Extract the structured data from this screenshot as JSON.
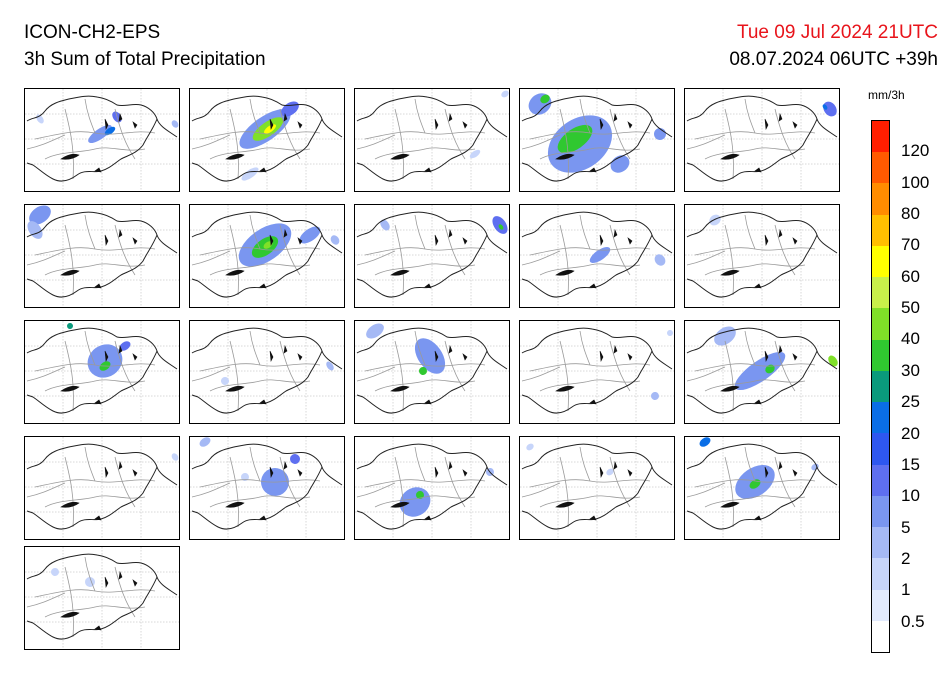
{
  "header": {
    "model": "ICON-CH2-EPS",
    "product": "3h Sum of Total Precipitation",
    "valid_time": "Tue 09 Jul 2024 21UTC",
    "run_info": "08.07.2024 06UTC +39h",
    "valid_time_color": "#e8141b"
  },
  "colorbar": {
    "unit": "mm/3h",
    "labels": [
      "120",
      "100",
      "80",
      "70",
      "60",
      "50",
      "40",
      "30",
      "25",
      "20",
      "15",
      "10",
      "5",
      "2",
      "1",
      "0.5"
    ],
    "colors_top_to_bottom": [
      "#ff1e00",
      "#ff5a00",
      "#ff8c00",
      "#ffbf00",
      "#ffff00",
      "#c8f04a",
      "#80e028",
      "#30c830",
      "#0a9a7c",
      "#0a6ee6",
      "#2e57f0",
      "#5e6ff0",
      "#7a96f0",
      "#a5b9f5",
      "#c7d5fa",
      "#e2eafd",
      "#ffffff"
    ]
  },
  "members": [
    {
      "precip": [
        [
          75,
          45,
          14,
          5,
          "#7a96f0"
        ],
        [
          85,
          42,
          6,
          3,
          "#0a6ee6"
        ],
        [
          92,
          28,
          4,
          6,
          "#5e6ff0"
        ],
        [
          15,
          30,
          3,
          5,
          "#c7d5fa"
        ],
        [
          150,
          35,
          3,
          4,
          "#a5b9f5"
        ]
      ]
    },
    {
      "precip": [
        [
          75,
          40,
          30,
          12,
          "#7a96f0"
        ],
        [
          78,
          40,
          18,
          7,
          "#80e028"
        ],
        [
          80,
          40,
          7,
          3,
          "#ffff00"
        ],
        [
          100,
          20,
          10,
          6,
          "#5e6ff0"
        ],
        [
          60,
          85,
          10,
          4,
          "#c7d5fa"
        ]
      ]
    },
    {
      "precip": [
        [
          120,
          65,
          6,
          3,
          "#c7d5fa"
        ],
        [
          150,
          5,
          4,
          3,
          "#c7d5fa"
        ]
      ]
    },
    {
      "precip": [
        [
          60,
          55,
          35,
          25,
          "#7a96f0"
        ],
        [
          55,
          50,
          20,
          10,
          "#30c830"
        ],
        [
          20,
          15,
          12,
          10,
          "#7a96f0"
        ],
        [
          25,
          10,
          5,
          4,
          "#30c830"
        ],
        [
          140,
          45,
          6,
          6,
          "#7a96f0"
        ],
        [
          100,
          75,
          10,
          8,
          "#7a96f0"
        ]
      ]
    },
    {
      "precip": [
        [
          145,
          20,
          6,
          8,
          "#5e6ff0"
        ],
        [
          140,
          18,
          2,
          3,
          "#0a6ee6"
        ]
      ]
    },
    {
      "precip": [
        [
          15,
          10,
          12,
          8,
          "#7a96f0"
        ],
        [
          10,
          25,
          6,
          10,
          "#a5b9f5"
        ]
      ]
    },
    {
      "precip": [
        [
          75,
          40,
          30,
          16,
          "#7a96f0"
        ],
        [
          75,
          42,
          15,
          8,
          "#30c830"
        ],
        [
          78,
          40,
          5,
          3,
          "#80e028"
        ],
        [
          120,
          30,
          12,
          6,
          "#7a96f0"
        ],
        [
          145,
          35,
          4,
          5,
          "#a5b9f5"
        ]
      ]
    },
    {
      "precip": [
        [
          145,
          20,
          6,
          10,
          "#5e6ff0"
        ],
        [
          146,
          22,
          2,
          3,
          "#30c830"
        ],
        [
          30,
          20,
          4,
          6,
          "#a5b9f5"
        ]
      ]
    },
    {
      "precip": [
        [
          80,
          50,
          12,
          5,
          "#7a96f0"
        ],
        [
          140,
          55,
          5,
          6,
          "#a5b9f5"
        ]
      ]
    },
    {
      "precip": [
        [
          30,
          15,
          6,
          5,
          "#c7d5fa"
        ]
      ]
    },
    {
      "precip": [
        [
          80,
          40,
          18,
          16,
          "#7a96f0"
        ],
        [
          80,
          45,
          6,
          4,
          "#30c830"
        ],
        [
          100,
          25,
          6,
          4,
          "#5e6ff0"
        ],
        [
          45,
          5,
          3,
          3,
          "#0a9a7c"
        ]
      ]
    },
    {
      "precip": [
        [
          140,
          45,
          3,
          5,
          "#a5b9f5"
        ],
        [
          35,
          60,
          4,
          4,
          "#c7d5fa"
        ]
      ]
    },
    {
      "precip": [
        [
          75,
          35,
          12,
          20,
          "#7a96f0"
        ],
        [
          68,
          50,
          4,
          4,
          "#30c830"
        ],
        [
          20,
          10,
          10,
          6,
          "#a5b9f5"
        ]
      ]
    },
    {
      "precip": [
        [
          135,
          75,
          4,
          4,
          "#a5b9f5"
        ],
        [
          150,
          12,
          3,
          3,
          "#c7d5fa"
        ]
      ]
    },
    {
      "precip": [
        [
          75,
          50,
          30,
          10,
          "#7a96f0"
        ],
        [
          85,
          48,
          5,
          4,
          "#30c830"
        ],
        [
          40,
          15,
          12,
          8,
          "#a5b9f5"
        ],
        [
          148,
          40,
          4,
          6,
          "#80e028"
        ]
      ]
    },
    {
      "precip": [
        [
          150,
          20,
          3,
          4,
          "#c7d5fa"
        ]
      ]
    },
    {
      "precip": [
        [
          85,
          45,
          14,
          14,
          "#7a96f0"
        ],
        [
          105,
          22,
          5,
          5,
          "#5e6ff0"
        ],
        [
          15,
          5,
          6,
          4,
          "#a5b9f5"
        ],
        [
          55,
          40,
          4,
          4,
          "#c7d5fa"
        ]
      ]
    },
    {
      "precip": [
        [
          60,
          65,
          16,
          14,
          "#7a96f0"
        ],
        [
          65,
          58,
          4,
          4,
          "#30c830"
        ],
        [
          135,
          35,
          4,
          4,
          "#a5b9f5"
        ]
      ]
    },
    {
      "precip": [
        [
          10,
          10,
          4,
          3,
          "#c7d5fa"
        ],
        [
          90,
          35,
          4,
          3,
          "#c7d5fa"
        ]
      ]
    },
    {
      "precip": [
        [
          70,
          45,
          22,
          14,
          "#7a96f0"
        ],
        [
          70,
          47,
          6,
          4,
          "#30c830"
        ],
        [
          20,
          5,
          6,
          4,
          "#0a6ee6"
        ],
        [
          130,
          30,
          4,
          3,
          "#a5b9f5"
        ]
      ]
    },
    {
      "precip": [
        [
          65,
          35,
          5,
          5,
          "#c7d5fa"
        ],
        [
          30,
          25,
          4,
          4,
          "#c7d5fa"
        ]
      ]
    }
  ]
}
